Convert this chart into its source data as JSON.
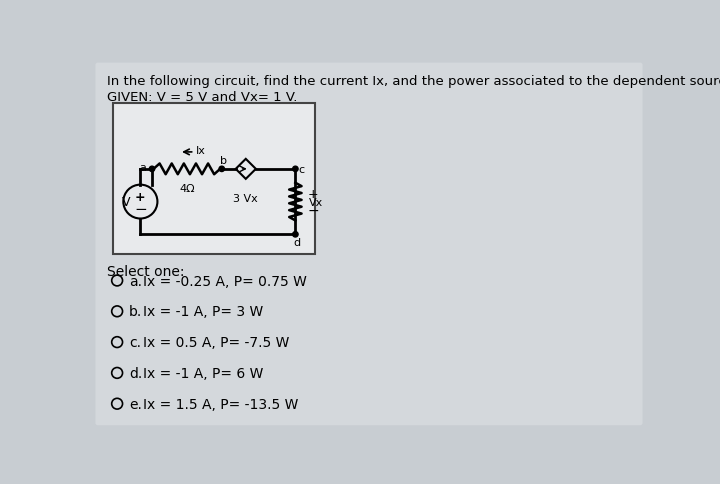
{
  "bg_color": "#c8cdd2",
  "card_color": "#d4d8dc",
  "title_text": "In the following circuit, find the current Ix, and the power associated to the dependent source.",
  "given_text": "GIVEN: V = 5 V and Vx= 1 V.",
  "select_text": "Select one:",
  "options": [
    {
      "label": "a.",
      "text": "Ix = -0.25 A, P= 0.75 W"
    },
    {
      "label": "b.",
      "text": "Ix = -1 A, P= 3 W"
    },
    {
      "label": "c.",
      "text": "Ix = 0.5 A, P= -7.5 W"
    },
    {
      "label": "d.",
      "text": "Ix = -1 A, P= 6 W"
    },
    {
      "label": "e.",
      "text": "Ix = 1.5 A, P= -13.5 W"
    }
  ],
  "circuit_bg": "#e8eaec",
  "resistor_label": "4Ω",
  "dep_source_label": "3 Vx",
  "vx_label": "Vx",
  "ix_label": "Ix",
  "font_size_title": 9.5,
  "font_size_options": 10,
  "font_size_given": 9.5,
  "font_size_circuit": 8
}
